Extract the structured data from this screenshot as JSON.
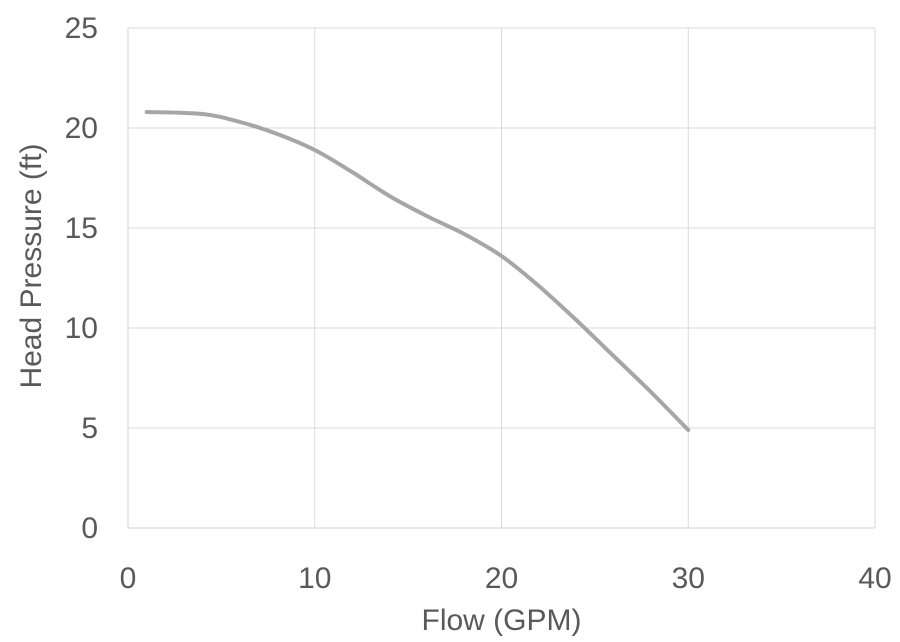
{
  "chart_data": {
    "type": "line",
    "title": "",
    "xlabel": "Flow (GPM)",
    "ylabel": "Head Pressure (ft)",
    "xlim": [
      0,
      40
    ],
    "ylim": [
      0,
      25
    ],
    "x_ticks": [
      0,
      10,
      20,
      30,
      40
    ],
    "y_ticks": [
      0,
      5,
      10,
      15,
      20,
      25
    ],
    "x_tick_labels": [
      "0",
      "10",
      "20",
      "30",
      "40"
    ],
    "y_tick_labels": [
      "0",
      "5",
      "10",
      "15",
      "20",
      "25"
    ],
    "grid": true,
    "legend": "none",
    "series": [
      {
        "color": "#a6a6a6",
        "x": [
          1,
          4,
          6,
          8,
          10,
          12,
          14,
          16,
          18,
          20,
          22,
          24,
          26,
          28,
          30
        ],
        "y": [
          20.8,
          20.7,
          20.3,
          19.7,
          18.9,
          17.8,
          16.6,
          15.6,
          14.7,
          13.6,
          12.1,
          10.4,
          8.6,
          6.8,
          4.9
        ]
      }
    ]
  }
}
